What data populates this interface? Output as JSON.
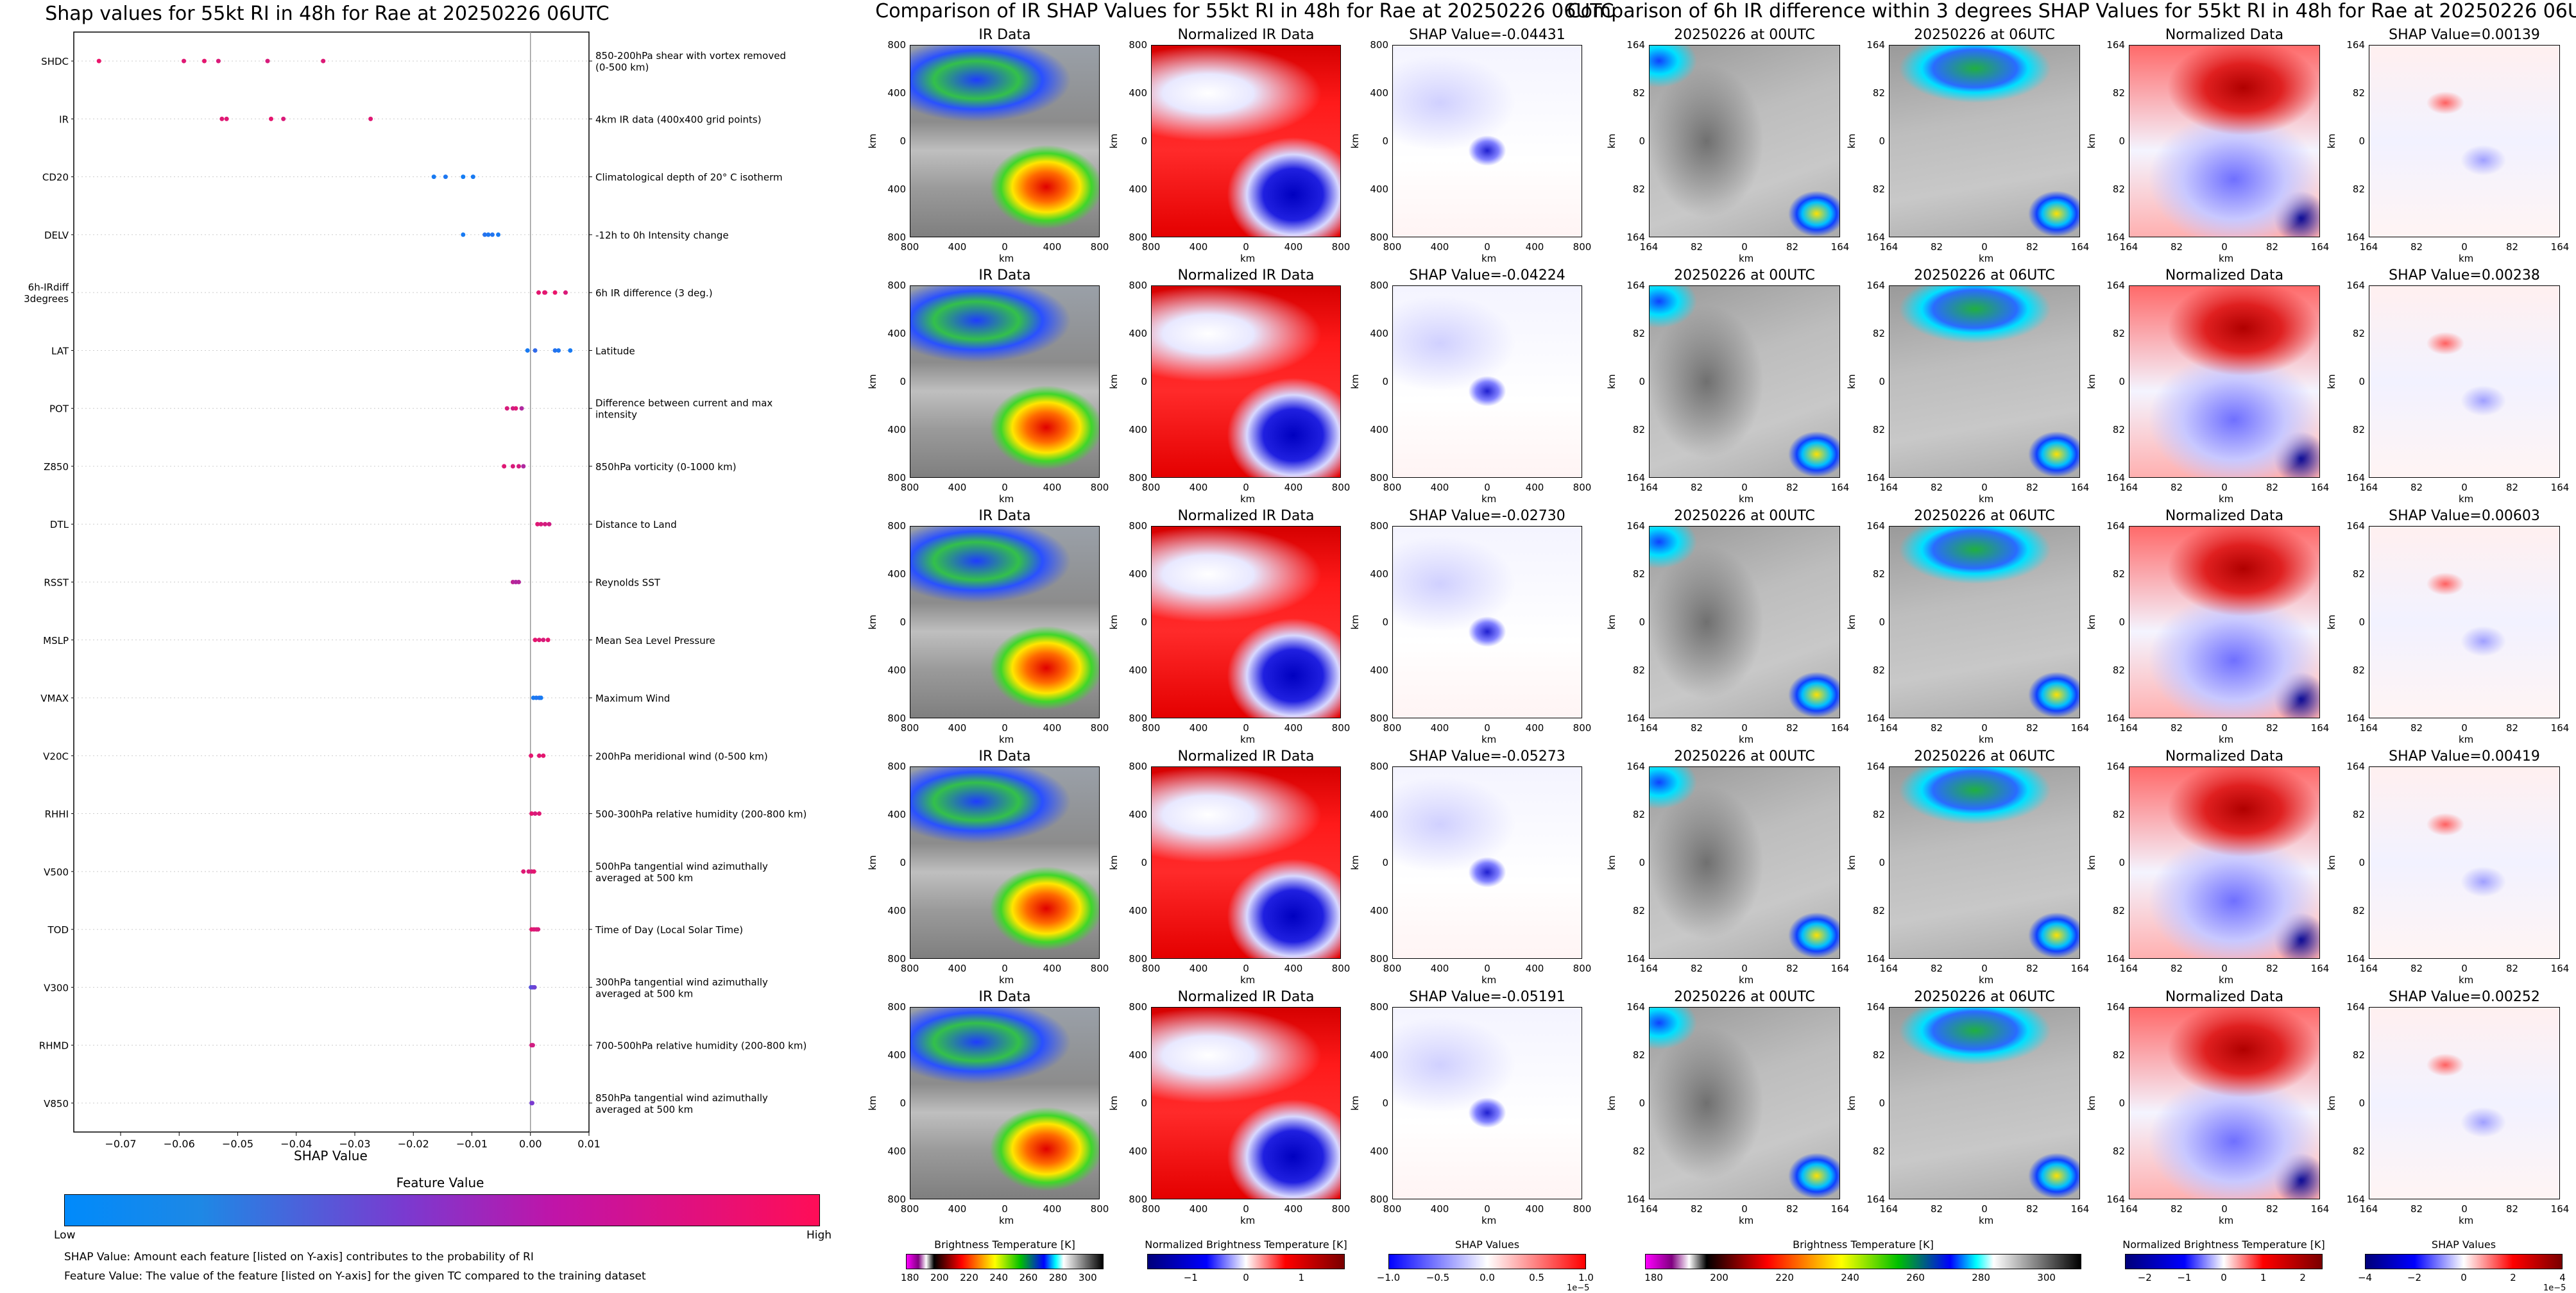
{
  "beeswarm": {
    "title": "Shap values for 55kt RI in 48h for Rae at 20250226 06UTC",
    "xlabel": "SHAP Value",
    "colorbar_title": "Feature Value",
    "colorbar_low": "Low",
    "colorbar_high": "High",
    "note1": "SHAP Value: Amount each feature [listed on Y-axis] contributes to the probability of RI",
    "note2": "Feature Value: The value of the feature [listed on Y-axis] for the given TC compared to the training dataset"
  },
  "ir_section": {
    "title": "Comparison of IR SHAP Values for 55kt RI in 48h for Rae at 20250226 06UTC"
  },
  "diff_section": {
    "title": "Comparison of 6h IR difference within 3 degrees SHAP Values for 55kt RI in 48h for Rae at 20250226 06UTC"
  },
  "panel_titles": {
    "ir": "IR Data",
    "norm_ir": "Normalized IR Data",
    "t00": "20250226 at 00UTC",
    "t06": "20250226 at 06UTC",
    "norm": "Normalized Data"
  },
  "ir_shap_titles": [
    "SHAP Value=-0.04431",
    "SHAP Value=-0.04224",
    "SHAP Value=-0.02730",
    "SHAP Value=-0.05273",
    "SHAP Value=-0.05191"
  ],
  "diff_shap_titles": [
    "SHAP Value=0.00139",
    "SHAP Value=0.00238",
    "SHAP Value=0.00603",
    "SHAP Value=0.00419",
    "SHAP Value=0.00252"
  ],
  "axis_unit": "km",
  "ir_ticks_y": [
    "800",
    "400",
    "0",
    "400",
    "800"
  ],
  "ir_ticks_x": [
    "800",
    "400",
    "0",
    "400",
    "800"
  ],
  "diff_ticks_y": [
    "164",
    "82",
    "0",
    "82",
    "164"
  ],
  "diff_ticks_x": [
    "164",
    "82",
    "0",
    "82",
    "164"
  ],
  "colorbars": {
    "bt1": {
      "label": "Brightness Temperature [K]",
      "ticks": [
        "180",
        "200",
        "220",
        "240",
        "260",
        "280",
        "300"
      ]
    },
    "nbt1": {
      "label": "Normalized Brightness Temperature [K]",
      "ticks": [
        "−1",
        "0",
        "1"
      ]
    },
    "shap1": {
      "label": "SHAP Values",
      "ticks": [
        "−1.0",
        "−0.5",
        "0.0",
        "0.5",
        "1.0"
      ],
      "offset": "1e−5"
    },
    "bt2": {
      "label": "Brightness Temperature [K]",
      "ticks": [
        "180",
        "200",
        "220",
        "240",
        "260",
        "280",
        "300"
      ]
    },
    "nbt2": {
      "label": "Normalized Brightness Temperature [K]",
      "ticks": [
        "−2",
        "−1",
        "0",
        "1",
        "2"
      ]
    },
    "shap2": {
      "label": "SHAP Values",
      "ticks": [
        "−4",
        "−2",
        "0",
        "2",
        "4"
      ],
      "offset": "1e−5"
    }
  },
  "colors": {
    "low": "#1e88e5",
    "high": "#ff0d57"
  },
  "chart_data": {
    "type": "scatter",
    "title": "Shap values for 55kt RI in 48h for Rae at 20250226 06UTC",
    "xlabel": "SHAP Value",
    "xlim": [
      -0.078,
      0.01
    ],
    "xticks": [
      "−0.07",
      "−0.06",
      "−0.05",
      "−0.04",
      "−0.03",
      "−0.02",
      "−0.01",
      "0.00",
      "0.01"
    ],
    "xtick_values": [
      -0.07,
      -0.06,
      -0.05,
      -0.04,
      -0.03,
      -0.02,
      -0.01,
      0.0,
      0.01
    ],
    "features": [
      {
        "name": "SHDC",
        "desc": "850-200hPa shear with vortex removed (0-500 km)",
        "points": [
          [
            -0.0737,
            0.92
          ],
          [
            -0.0592,
            0.88
          ],
          [
            -0.0557,
            0.9
          ],
          [
            -0.0533,
            0.86
          ],
          [
            -0.0449,
            0.85
          ],
          [
            -0.0354,
            0.87
          ]
        ]
      },
      {
        "name": "IR",
        "desc": "4km IR data (400x400 grid points)",
        "points": [
          [
            -0.0527,
            0.88
          ],
          [
            -0.0519,
            0.88
          ],
          [
            -0.0443,
            0.9
          ],
          [
            -0.0422,
            0.86
          ],
          [
            -0.0273,
            0.88
          ]
        ]
      },
      {
        "name": "CD20",
        "desc": "Climatological depth of 20° C isotherm",
        "points": [
          [
            -0.0165,
            0.1
          ],
          [
            -0.0145,
            0.12
          ],
          [
            -0.0115,
            0.08
          ],
          [
            -0.0098,
            0.1
          ]
        ]
      },
      {
        "name": "DELV",
        "desc": "-12h to 0h Intensity change",
        "points": [
          [
            -0.0115,
            0.1
          ],
          [
            -0.0078,
            0.15
          ],
          [
            -0.0072,
            0.12
          ],
          [
            -0.0065,
            0.14
          ],
          [
            -0.0055,
            0.1
          ]
        ]
      },
      {
        "name": "6h-IRdiff 3degrees",
        "desc": "6h IR difference (3 deg.)",
        "points": [
          [
            0.0014,
            0.9
          ],
          [
            0.0024,
            0.88
          ],
          [
            0.0042,
            0.92
          ],
          [
            0.006,
            0.86
          ],
          [
            0.0025,
            0.9
          ]
        ]
      },
      {
        "name": "LAT",
        "desc": "Latitude",
        "points": [
          [
            -0.0005,
            0.1
          ],
          [
            0.0008,
            0.2
          ],
          [
            0.0042,
            0.15
          ],
          [
            0.0048,
            0.12
          ],
          [
            0.0068,
            0.1
          ]
        ]
      },
      {
        "name": "POT",
        "desc": "Difference between current and max intensity",
        "points": [
          [
            -0.004,
            0.85
          ],
          [
            -0.003,
            0.82
          ],
          [
            -0.0025,
            0.88
          ],
          [
            -0.0015,
            0.7
          ]
        ]
      },
      {
        "name": "Z850",
        "desc": "850hPa vorticity (0-1000 km)",
        "points": [
          [
            -0.0045,
            0.88
          ],
          [
            -0.003,
            0.85
          ],
          [
            -0.002,
            0.84
          ],
          [
            -0.0012,
            0.7
          ]
        ]
      },
      {
        "name": "DTL",
        "desc": "Distance to Land",
        "points": [
          [
            0.0012,
            0.88
          ],
          [
            0.0018,
            0.85
          ],
          [
            0.0025,
            0.84
          ],
          [
            0.0032,
            0.82
          ]
        ]
      },
      {
        "name": "RSST",
        "desc": "Reynolds SST",
        "points": [
          [
            -0.003,
            0.75
          ],
          [
            -0.0025,
            0.7
          ],
          [
            -0.002,
            0.72
          ]
        ]
      },
      {
        "name": "MSLP",
        "desc": "Mean Sea Level Pressure",
        "points": [
          [
            0.0008,
            0.9
          ],
          [
            0.0015,
            0.88
          ],
          [
            0.0022,
            0.85
          ],
          [
            0.003,
            0.9
          ]
        ]
      },
      {
        "name": "VMAX",
        "desc": "Maximum Wind",
        "points": [
          [
            0.0005,
            0.1
          ],
          [
            0.001,
            0.12
          ],
          [
            0.0015,
            0.15
          ],
          [
            0.0018,
            0.1
          ]
        ]
      },
      {
        "name": "V20C",
        "desc": "200hPa meridional wind (0-500 km)",
        "points": [
          [
            0.0001,
            0.9
          ],
          [
            0.0015,
            0.88
          ],
          [
            0.0022,
            0.9
          ]
        ]
      },
      {
        "name": "RHHI",
        "desc": "500-300hPa relative humidity (200-800 km)",
        "points": [
          [
            0.0002,
            0.9
          ],
          [
            0.0008,
            0.85
          ],
          [
            0.0015,
            0.88
          ]
        ]
      },
      {
        "name": "V500",
        "desc": "500hPa tangential wind azimuthally averaged at 500 km",
        "points": [
          [
            -0.0012,
            0.88
          ],
          [
            -0.0003,
            0.86
          ],
          [
            0.0002,
            0.85
          ],
          [
            0.0006,
            0.9
          ]
        ]
      },
      {
        "name": "TOD",
        "desc": "Time of Day (Local Solar Time)",
        "points": [
          [
            0.0002,
            0.9
          ],
          [
            0.0006,
            0.88
          ],
          [
            0.001,
            0.86
          ],
          [
            0.0013,
            0.85
          ]
        ]
      },
      {
        "name": "V300",
        "desc": "300hPa tangential wind azimuthally averaged at 500 km",
        "points": [
          [
            0.0001,
            0.35
          ],
          [
            0.0004,
            0.4
          ],
          [
            0.0007,
            0.45
          ]
        ]
      },
      {
        "name": "RHMD",
        "desc": "700-500hPa relative humidity (200-800 km)",
        "points": [
          [
            0.0002,
            0.85
          ],
          [
            0.0004,
            0.82
          ]
        ]
      },
      {
        "name": "V850",
        "desc": "850hPa tangential wind azimuthally averaged at 500 km",
        "points": [
          [
            0.0002,
            0.45
          ],
          [
            0.0003,
            0.5
          ]
        ]
      }
    ]
  }
}
